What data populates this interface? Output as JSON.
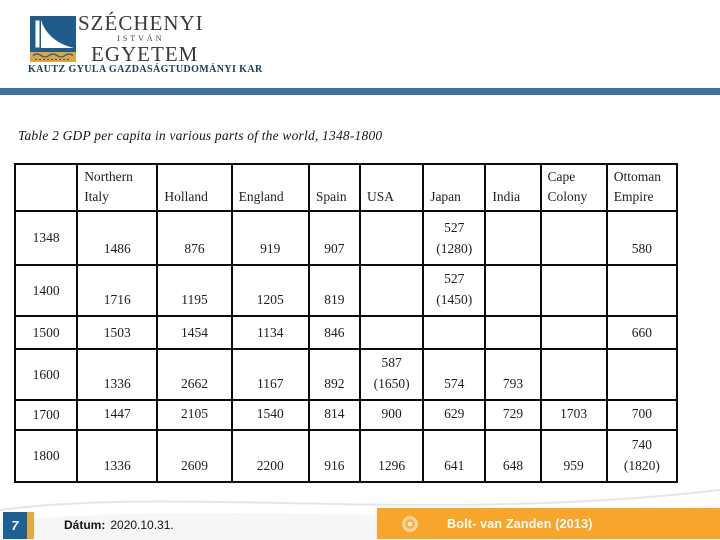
{
  "logo": {
    "line1": "SZÉCHENYI",
    "line2": "ISTVÁN",
    "line3": "EGYETEM",
    "faculty": "KAUTZ GYULA GAZDASÁGTUDOMÁNYI KAR"
  },
  "table": {
    "title": "Table 2 GDP per capita in various parts of the world, 1348-1800",
    "columns": [
      "",
      "Northern Italy",
      "Holland",
      "England",
      "Spain",
      "USA",
      "Japan",
      "India",
      "Cape Colony",
      "Ottoman Empire"
    ],
    "rows": [
      [
        "1348",
        "1486",
        "876",
        "919",
        "907",
        "",
        "527\n(1280)",
        "",
        "",
        "580"
      ],
      [
        "1400",
        "1716",
        "1195",
        "1205",
        "819",
        "",
        "527\n(1450)",
        "",
        "",
        ""
      ],
      [
        "1500",
        "1503",
        "1454",
        "1134",
        "846",
        "",
        "",
        "",
        "",
        "660"
      ],
      [
        "1600",
        "1336",
        "2662",
        "1167",
        "892",
        "587\n(1650)",
        "574",
        "793",
        "",
        ""
      ],
      [
        "1700",
        "1447",
        "2105",
        "1540",
        "814",
        "900",
        "629",
        "729",
        "1703",
        "700"
      ],
      [
        "1800",
        "1336",
        "2609",
        "2200",
        "916",
        "1296",
        "641",
        "648",
        "959",
        "740\n(1820)"
      ]
    ]
  },
  "footer": {
    "page_number": "7",
    "date_label": "Dátum:",
    "date_value": "2020.10.31.",
    "citation": "Bolt- van Zanden (2013)"
  },
  "colors": {
    "accent_bar": "#3f6fa3",
    "page_number_box": "#1c6095",
    "gold_stripe": "#e9a63c",
    "citation_bar": "#f7a62b",
    "logo_blue": "#1e5c8e",
    "logo_gold": "#e2a43c",
    "faculty_navy": "#1c3e63"
  }
}
